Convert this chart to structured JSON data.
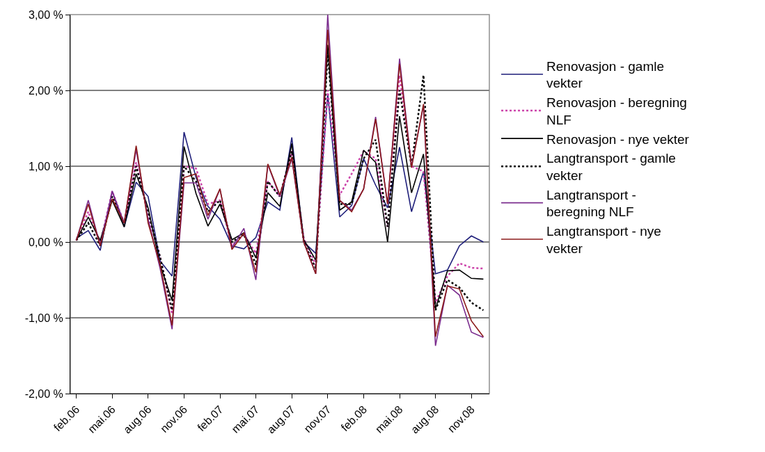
{
  "chart_data": {
    "type": "line",
    "categories": [
      "feb.06",
      null,
      null,
      "mai.06",
      null,
      null,
      "aug.06",
      null,
      null,
      "nov.06",
      null,
      null,
      "feb.07",
      null,
      null,
      "mai.07",
      null,
      null,
      "aug.07",
      null,
      null,
      "nov.07",
      null,
      null,
      "feb.08",
      null,
      null,
      "mai.08",
      null,
      null,
      "aug.08",
      null,
      null,
      "nov.08",
      null
    ],
    "ylim": [
      -2,
      3
    ],
    "yticks": [
      {
        "value": -2,
        "label": "-2,00 %"
      },
      {
        "value": -1,
        "label": "-1,00 %"
      },
      {
        "value": 0,
        "label": "0,00 %"
      },
      {
        "value": 1,
        "label": "1,00 %"
      },
      {
        "value": 2,
        "label": "2,00 %"
      },
      {
        "value": 3,
        "label": "3,00 %"
      }
    ],
    "grid": "y",
    "legend": "right",
    "marker": "none",
    "series": [
      {
        "name": "Renovasjon - gamle vekter",
        "color": "#1f1f7a",
        "line_style": "solid",
        "values": [
          0.05,
          0.15,
          -0.11,
          0.67,
          0.2,
          0.79,
          0.6,
          -0.25,
          -0.45,
          1.45,
          0.85,
          0.47,
          0.3,
          -0.05,
          -0.09,
          0.06,
          0.53,
          0.42,
          1.38,
          0.0,
          -0.15,
          1.95,
          0.33,
          0.48,
          1.1,
          0.75,
          0.45,
          1.25,
          0.4,
          0.93,
          -0.42,
          -0.37,
          -0.05,
          0.08,
          0.0
        ]
      },
      {
        "name": "Renovasjon - beregning NLF",
        "color": "#cc44aa",
        "line_style": "dotted",
        "values": [
          0.02,
          0.4,
          -0.02,
          0.67,
          0.25,
          1.05,
          0.35,
          -0.2,
          -0.95,
          1.0,
          0.97,
          0.5,
          0.55,
          -0.05,
          0.1,
          -0.15,
          0.8,
          0.6,
          1.2,
          0.05,
          -0.3,
          2.0,
          0.62,
          0.9,
          1.2,
          1.1,
          0.2,
          2.2,
          1.0,
          0.93,
          -0.8,
          -0.45,
          -0.28,
          -0.34,
          -0.35
        ]
      },
      {
        "name": "Renovasjon - nye vekter",
        "color": "#000000",
        "line_style": "solid",
        "values": [
          0.02,
          0.33,
          0.02,
          0.55,
          0.2,
          0.9,
          0.45,
          -0.3,
          -0.77,
          1.26,
          0.64,
          0.21,
          0.5,
          0.03,
          0.12,
          -0.21,
          0.65,
          0.47,
          1.3,
          0.03,
          -0.24,
          2.6,
          0.42,
          0.53,
          1.21,
          1.05,
          0.0,
          1.66,
          0.65,
          1.16,
          -0.88,
          -0.38,
          -0.37,
          -0.48,
          -0.49
        ]
      },
      {
        "name": "Langtransport - gamle vekter",
        "color": "#000000",
        "line_style": "dotted",
        "values": [
          0.02,
          0.25,
          -0.05,
          0.6,
          0.25,
          1.0,
          0.4,
          -0.2,
          -0.9,
          1.0,
          0.8,
          0.4,
          0.55,
          0.0,
          0.1,
          -0.3,
          0.8,
          0.6,
          1.2,
          0.0,
          -0.35,
          2.5,
          0.5,
          0.5,
          1.1,
          1.35,
          0.2,
          2.0,
          1.0,
          2.2,
          -0.9,
          -0.5,
          -0.6,
          -0.8,
          -0.9
        ]
      },
      {
        "name": "Langtransport - beregning NLF",
        "color": "#7b2d8e",
        "line_style": "solid",
        "values": [
          0.02,
          0.55,
          -0.05,
          0.67,
          0.25,
          1.22,
          0.3,
          -0.35,
          -1.15,
          0.78,
          0.78,
          0.3,
          0.7,
          -0.08,
          0.18,
          -0.5,
          1.02,
          0.6,
          1.1,
          0.0,
          -0.42,
          3.0,
          0.55,
          0.42,
          0.7,
          1.65,
          0.5,
          2.42,
          1.0,
          1.8,
          -1.37,
          -0.57,
          -0.7,
          -1.19,
          -1.26
        ]
      },
      {
        "name": "Langtransport - nye vekter",
        "color": "#8b1a1a",
        "line_style": "solid",
        "values": [
          0.02,
          0.5,
          -0.05,
          0.57,
          0.25,
          1.27,
          0.25,
          -0.3,
          -1.1,
          0.85,
          0.9,
          0.35,
          0.7,
          -0.1,
          0.12,
          -0.4,
          1.03,
          0.62,
          1.12,
          0.0,
          -0.42,
          2.8,
          0.55,
          0.4,
          0.7,
          1.62,
          0.5,
          2.35,
          0.98,
          1.82,
          -1.25,
          -0.58,
          -0.62,
          -1.04,
          -1.25
        ]
      }
    ]
  }
}
